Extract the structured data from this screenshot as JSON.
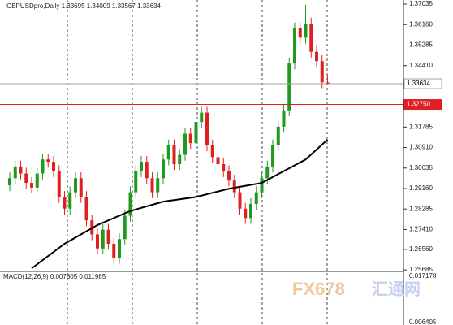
{
  "chart_data": {
    "type": "candlestick",
    "title": "GBPUSDpro,Daily",
    "header_values": [
      1.33695,
      1.34009,
      1.33567,
      1.33634
    ],
    "open": [
      1.293,
      1.296,
      1.301,
      1.298,
      1.294,
      1.292,
      1.298,
      1.304,
      1.303,
      1.299,
      1.288,
      1.283,
      1.29,
      1.296,
      1.288,
      1.278,
      1.272,
      1.266,
      1.274,
      1.268,
      1.262,
      1.27,
      1.28,
      1.29,
      1.299,
      1.303,
      1.296,
      1.29,
      1.296,
      1.304,
      1.31,
      1.302,
      1.306,
      1.315,
      1.311,
      1.32,
      1.324,
      1.31,
      1.305,
      1.302,
      1.299,
      1.295,
      1.29,
      1.283,
      1.279,
      1.285,
      1.29,
      1.296,
      1.301,
      1.31,
      1.318,
      1.325,
      1.345,
      1.36,
      1.356,
      1.362,
      1.35,
      1.346,
      1.33695
    ],
    "high": [
      1.2985,
      1.3035,
      1.3035,
      1.3005,
      1.2965,
      1.3005,
      1.3065,
      1.3065,
      1.3055,
      1.3015,
      1.2905,
      1.2925,
      1.2985,
      1.2985,
      1.2905,
      1.2805,
      1.2745,
      1.2765,
      1.2765,
      1.2705,
      1.2725,
      1.2825,
      1.2925,
      1.3015,
      1.3055,
      1.3055,
      1.2985,
      1.2985,
      1.3065,
      1.3125,
      1.3125,
      1.3085,
      1.3175,
      1.3175,
      1.3225,
      1.3265,
      1.3265,
      1.3125,
      1.3075,
      1.3045,
      1.3015,
      1.2975,
      1.2925,
      1.2855,
      1.2875,
      1.2925,
      1.2985,
      1.3035,
      1.3125,
      1.3205,
      1.3275,
      1.3475,
      1.3625,
      1.3625,
      1.37,
      1.3645,
      1.3525,
      1.3485,
      1.34009
    ],
    "low": [
      1.2905,
      1.2935,
      1.2955,
      1.2915,
      1.2895,
      1.2895,
      1.2955,
      1.3005,
      1.2965,
      1.2855,
      1.2805,
      1.2805,
      1.2875,
      1.2855,
      1.2755,
      1.2695,
      1.2635,
      1.2635,
      1.2655,
      1.2595,
      1.2595,
      1.2675,
      1.2775,
      1.2875,
      1.2965,
      1.2935,
      1.2875,
      1.2875,
      1.2935,
      1.3015,
      1.2995,
      1.2995,
      1.3035,
      1.3085,
      1.3085,
      1.3175,
      1.3075,
      1.3025,
      1.2995,
      1.2965,
      1.2925,
      1.2875,
      1.2805,
      1.2765,
      1.2765,
      1.2825,
      1.2875,
      1.2935,
      1.2985,
      1.3075,
      1.3155,
      1.3225,
      1.3425,
      1.3535,
      1.3535,
      1.3475,
      1.3435,
      1.3345,
      1.33567
    ],
    "close": [
      1.296,
      1.301,
      1.298,
      1.294,
      1.292,
      1.298,
      1.304,
      1.303,
      1.299,
      1.288,
      1.283,
      1.29,
      1.296,
      1.288,
      1.278,
      1.272,
      1.266,
      1.274,
      1.268,
      1.262,
      1.27,
      1.28,
      1.29,
      1.299,
      1.303,
      1.296,
      1.29,
      1.296,
      1.304,
      1.31,
      1.302,
      1.306,
      1.315,
      1.311,
      1.32,
      1.324,
      1.31,
      1.305,
      1.302,
      1.299,
      1.295,
      1.29,
      1.283,
      1.279,
      1.285,
      1.29,
      1.296,
      1.301,
      1.31,
      1.318,
      1.325,
      1.345,
      1.36,
      1.356,
      1.362,
      1.35,
      1.346,
      1.33695,
      1.33634
    ],
    "up_color": "#1e9a1e",
    "down_color": "#e02020",
    "moving_average": {
      "color": "#000000",
      "x": [
        4,
        10,
        16,
        22,
        28,
        34,
        40,
        46,
        50,
        54,
        58
      ],
      "values": [
        1.2575,
        1.268,
        1.276,
        1.282,
        1.286,
        1.288,
        1.2915,
        1.294,
        1.299,
        1.304,
        1.3125
      ]
    },
    "price_lines": {
      "values": [
        1.33634,
        1.3275
      ],
      "value_labels": [
        "1.33634",
        "1.32750"
      ],
      "colors": [
        "#a0a0a0",
        "#e02020"
      ]
    },
    "ylim": [
      1.2562,
      1.3721
    ],
    "yticks": [
      1.37035,
      {
        "value": 1.3616,
        "label": "1.36160"
      },
      1.35285,
      {
        "value": 1.3441,
        "label": "1.34410"
      },
      1.31785,
      {
        "value": 1.3091,
        "label": "1.30910"
      },
      1.30035,
      {
        "value": 1.2916,
        "label": "1.29160"
      },
      1.28285,
      {
        "value": 1.2741,
        "label": "1.27410"
      },
      {
        "value": 1.2656,
        "label": "1.26560"
      },
      1.25685
    ],
    "macd": {
      "title": "MACD(12,26,9)",
      "values": [
        0.007805,
        0.011985
      ],
      "yticks": [
        0.017178,
        0.006405
      ]
    },
    "watermark": "FX678",
    "watermark_cn": "汇通网"
  }
}
